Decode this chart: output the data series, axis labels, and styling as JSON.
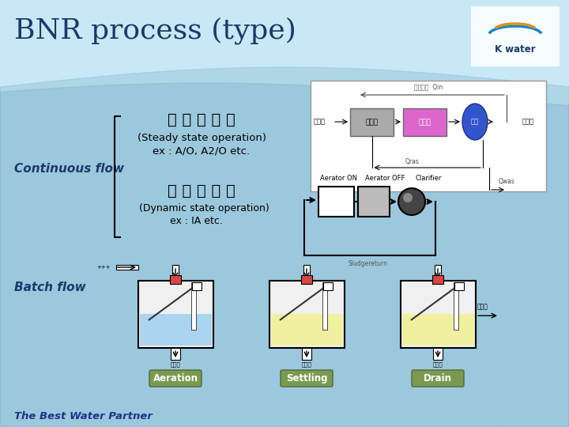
{
  "title": "BNR process (type)",
  "title_color": "#1a3a6b",
  "title_fontsize": 26,
  "footer_text": "The Best Water Partner",
  "footer_color": "#223388",
  "continuous_flow_label": "Continuous flow",
  "batch_flow_label": "Batch flow",
  "korean_label1": "공 간 배 치 형",
  "korean_label2": "시 간 배 치 형",
  "steady_state_label": "(Steady state operation)",
  "ex1_label": "ex : A/O, A2/O etc.",
  "dynamic_state_label": "(Dynamic state operation)",
  "ex2_label": "ex : IA etc.",
  "aeration_label": "Aeration",
  "settling_label": "Settling",
  "drain_label": "Drain",
  "water_blue": "#aad4f0",
  "water_yellow": "#f0f0a0",
  "label_bg_color": "#7a9a50",
  "label_text_color": "#ffffff",
  "process_box1_color": "#aaaaaa",
  "process_box2_color": "#dd66cc",
  "process_circle_color": "#3355cc",
  "bg_light": "#c8e8f5",
  "bg_wave": "#a0ccdd",
  "tank_red": "#dd4444"
}
